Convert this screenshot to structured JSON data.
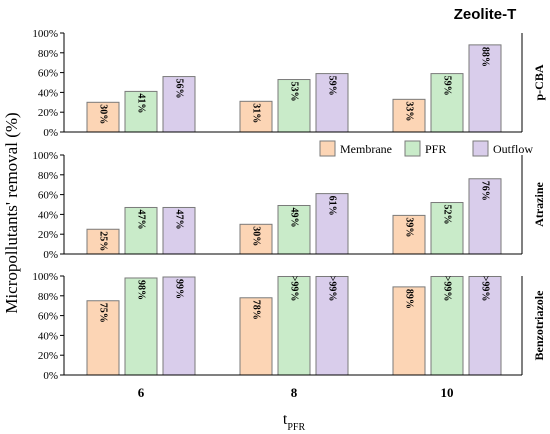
{
  "chart_data": {
    "type": "bar",
    "title": "Zeolite-T",
    "ylabel": "Micropollutants' removal (%)",
    "xlabel_main": "t",
    "xlabel_sub": "PFR",
    "categories": [
      "6",
      "8",
      "10"
    ],
    "ylim": [
      0,
      100
    ],
    "yticks": [
      "0%",
      "20%",
      "40%",
      "60%",
      "80%",
      "100%"
    ],
    "legend": {
      "position": "middle-right",
      "entries": [
        "Membrane",
        "PFR",
        "Outflow"
      ]
    },
    "colors": {
      "Membrane": "#fcd5b5",
      "PFR": "#c9ebc9",
      "Outflow": "#d9cdeb",
      "stroke": "#7a7a7a"
    },
    "panels": [
      {
        "name": "p-CBA",
        "series": [
          {
            "name": "Membrane",
            "values": [
              30,
              31,
              33
            ],
            "labels": [
              "30%",
              "31%",
              "33%"
            ]
          },
          {
            "name": "PFR",
            "values": [
              41,
              53,
              59
            ],
            "labels": [
              "41%",
              "53%",
              "59%"
            ]
          },
          {
            "name": "Outflow",
            "values": [
              56,
              59,
              88
            ],
            "labels": [
              "56%",
              "59%",
              "88%"
            ]
          }
        ]
      },
      {
        "name": "Atrazine",
        "series": [
          {
            "name": "Membrane",
            "values": [
              25,
              30,
              39
            ],
            "labels": [
              "25%",
              "30%",
              "39%"
            ]
          },
          {
            "name": "PFR",
            "values": [
              47,
              49,
              52
            ],
            "labels": [
              "47%",
              "49%",
              "52%"
            ]
          },
          {
            "name": "Outflow",
            "values": [
              47,
              61,
              76
            ],
            "labels": [
              "47%",
              "61%",
              "76%"
            ]
          }
        ]
      },
      {
        "name": "Benzotriazole",
        "series": [
          {
            "name": "Membrane",
            "values": [
              75,
              78,
              89
            ],
            "labels": [
              "75%",
              "78%",
              "89%"
            ]
          },
          {
            "name": "PFR",
            "values": [
              98,
              99.5,
              99.5
            ],
            "labels": [
              "98%",
              ">99%",
              ">99%"
            ]
          },
          {
            "name": "Outflow",
            "values": [
              99,
              99.5,
              99.5
            ],
            "labels": [
              "99%",
              ">99%",
              ">99%"
            ]
          }
        ]
      }
    ]
  }
}
